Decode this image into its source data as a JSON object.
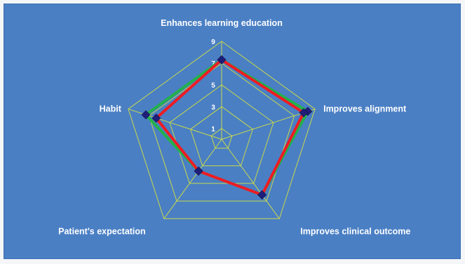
{
  "chart_data": {
    "type": "radar",
    "title": "",
    "axes": [
      "Enhances learning education",
      "Improves alignment",
      "Improves clinical outcome",
      "Patient's expectation",
      "Habit"
    ],
    "radial_ticks": [
      1,
      3,
      5,
      7,
      9
    ],
    "range": [
      0,
      9
    ],
    "grid": true,
    "legend": "none",
    "series": [
      {
        "values": [
          7.3,
          8.3,
          6.3,
          3.6,
          7.3
        ],
        "color": "#22b14c"
      },
      {
        "values": [
          7.3,
          7.9,
          6.3,
          3.6,
          6.3
        ],
        "color": "#ed1c24"
      }
    ],
    "marker_color": "#1f1f7a"
  },
  "style": {
    "panel_bg": "#4a7fc4",
    "grid_color": "#c8d94a"
  }
}
